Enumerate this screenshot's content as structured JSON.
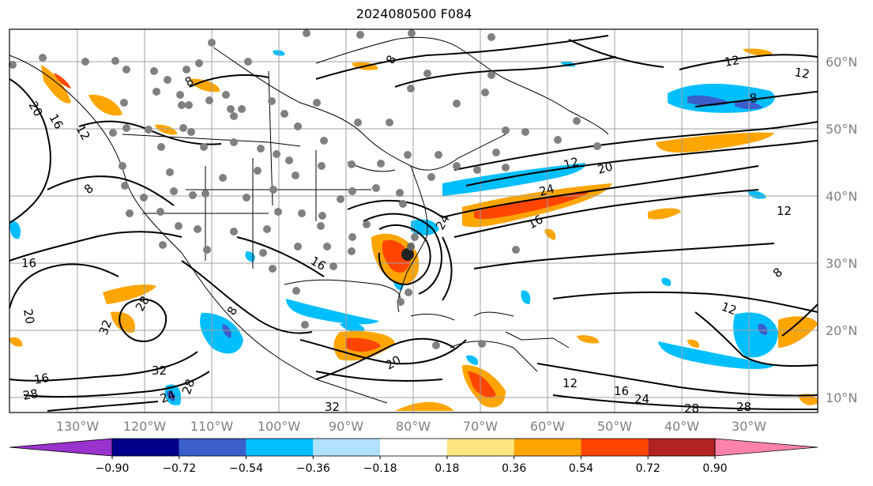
{
  "title": "2024080500 F084",
  "lat_labels": [
    "60°N",
    "50°N",
    "40°N",
    "30°N",
    "20°N",
    "10°N"
  ],
  "lon_labels": [
    "130°W",
    "120°W",
    "110°W",
    "100°W",
    "90°W",
    "80°W",
    "70°W",
    "60°W",
    "50°W",
    "40°W",
    "30°W"
  ],
  "contour_labels": [
    "8",
    "12",
    "16",
    "20",
    "24",
    "28",
    "32"
  ],
  "colorbar": {
    "ticks": [
      "−0.90",
      "−0.72",
      "−0.54",
      "−0.36",
      "−0.18",
      "0.18",
      "0.36",
      "0.54",
      "0.72",
      "0.90"
    ],
    "colors": [
      "#9a32cd",
      "#00008b",
      "#3a5fcd",
      "#00bfff",
      "#b0e2ff",
      "#ffffff",
      "#ffe680",
      "#ffa500",
      "#ff4500",
      "#b22222",
      "#ff82ab"
    ]
  },
  "colors": {
    "negative_fill": "#00bfff",
    "positive_fill": "#ffa500",
    "strong_positive": "#ff4500",
    "stations": "#808080",
    "gridlines": "#a0a0a0"
  }
}
